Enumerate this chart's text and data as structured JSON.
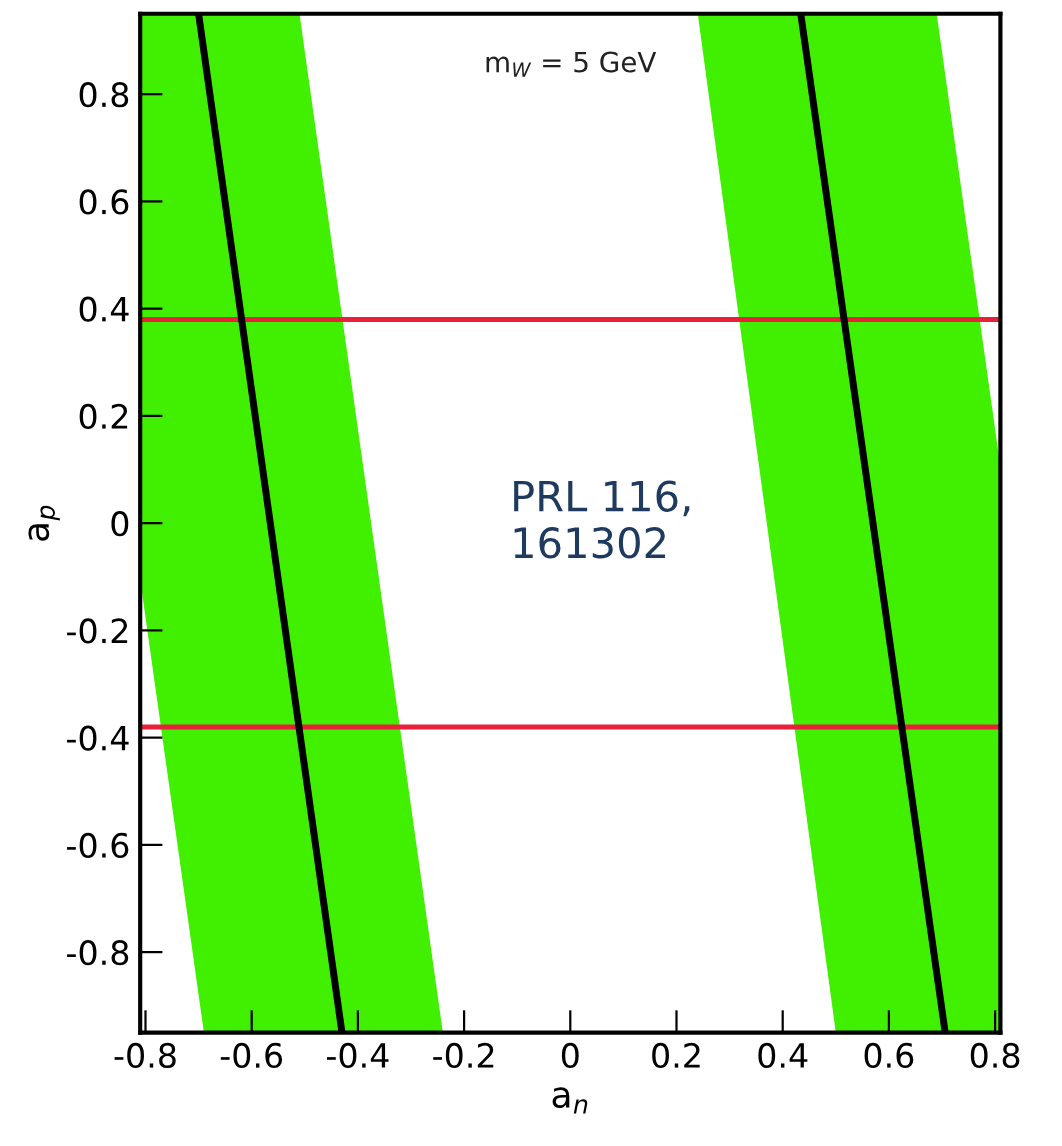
{
  "chart_data": {
    "type": "line",
    "xlabel": "a$_{n}$",
    "ylabel": "a$_{p}$",
    "annotations": [
      "m$_{W}$ = 5 GeV",
      "PRL 116,\n161302"
    ],
    "xlim": [
      -0.81,
      0.81
    ],
    "ylim": [
      -0.95,
      0.95
    ],
    "xticks": [
      -0.8,
      -0.6,
      -0.4,
      -0.2,
      0,
      0.2,
      0.4,
      0.6,
      0.8
    ],
    "yticks": [
      -0.8,
      -0.6,
      -0.4,
      -0.2,
      0,
      0.2,
      0.4,
      0.6,
      0.8
    ],
    "grid": false,
    "legend": false,
    "series": [
      {
        "color": "#40f000",
        "x": [
          -0.81,
          -0.69,
          -0.51,
          -0.24
        ],
        "lower": [
          -0.105,
          -0.95,
          -0.95,
          -0.95
        ],
        "upper": [
          0.95,
          0.95,
          0.95,
          -0.95
        ],
        "values": [
          null,
          null,
          null,
          null
        ]
      },
      {
        "color": "#40f000",
        "x": [
          0.24,
          0.5,
          0.69,
          0.81
        ],
        "lower": [
          0.95,
          -0.95,
          -0.95,
          -0.95
        ],
        "upper": [
          0.95,
          0.95,
          0.95,
          0.105
        ],
        "values": [
          null,
          null,
          null,
          null
        ]
      },
      {
        "color": "#000000",
        "x": [
          -0.7,
          -0.43
        ],
        "values": [
          0.95,
          -0.95
        ]
      },
      {
        "color": "#000000",
        "x": [
          0.434,
          0.706
        ],
        "values": [
          0.95,
          -0.95
        ]
      }
    ],
    "ref_lines": [
      {
        "axis": "y",
        "value": 0.38,
        "color": "#e8203a"
      },
      {
        "axis": "y",
        "value": -0.38,
        "color": "#e8203a"
      }
    ]
  }
}
